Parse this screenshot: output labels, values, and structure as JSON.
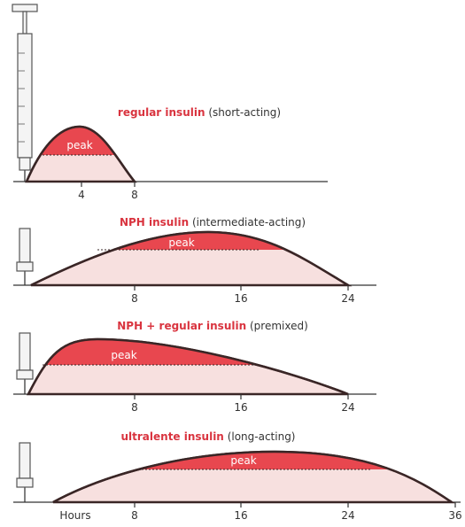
{
  "panels": [
    {
      "name": "regular insulin",
      "note": "(short-acting)",
      "peak": "peak",
      "ticks": [
        "4",
        "8"
      ]
    },
    {
      "name": "NPH insulin",
      "note": "(intermediate-acting)",
      "peak": "peak",
      "ticks": [
        "8",
        "16",
        "24"
      ]
    },
    {
      "name": "NPH + regular insulin",
      "note": "(premixed)",
      "peak": "peak",
      "ticks": [
        "8",
        "16",
        "24"
      ]
    },
    {
      "name": "ultralente insulin",
      "note": "(long-acting)",
      "peak": "peak",
      "axis_label": "Hours",
      "ticks": [
        "8",
        "16",
        "24",
        "36"
      ]
    }
  ]
}
